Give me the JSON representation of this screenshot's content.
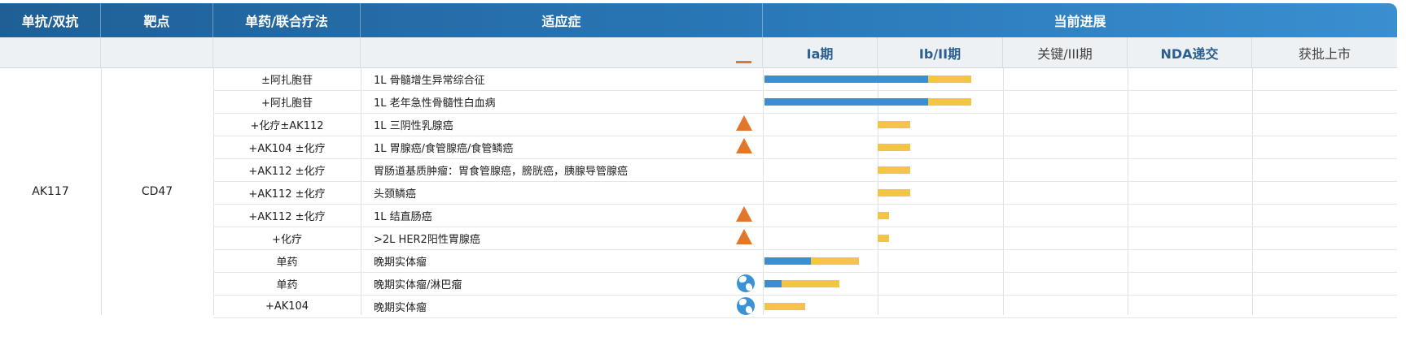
{
  "header": {
    "col_antibody": "单抗/双抗",
    "col_target": "靶点",
    "col_therapy": "单药/联合疗法",
    "col_indication": "适应症",
    "col_progress": "当前进展"
  },
  "phases": [
    "Ia期",
    "Ib/II期",
    "关键/III期",
    "NDA递交",
    "获批上市"
  ],
  "drug": "AK117",
  "target": "CD47",
  "colors": {
    "header_start": "#1f5f96",
    "header_end": "#3a8fd0",
    "bar_blue": "#3d8ed0",
    "bar_gold": "#f2c447",
    "marker": "#e0772a"
  },
  "rows": [
    {
      "therapy": "±阿扎胞苷",
      "indication": "1L 骨髓增生异常综合征",
      "marker": "",
      "progress_blue": 1.4,
      "progress_gold": 1.75
    },
    {
      "therapy": "+阿扎胞苷",
      "indication": "1L 老年急性骨髓性白血病",
      "marker": "",
      "progress_blue": 1.4,
      "progress_gold": 1.75
    },
    {
      "therapy": "+化疗±AK112",
      "indication": "1L 三阴性乳腺癌",
      "marker": "triangle-icon",
      "progress_blue": 0,
      "progress_gold": 1.26
    },
    {
      "therapy": "+AK104 ±化疗",
      "indication": "1L 胃腺癌/食管腺癌/食管鳞癌",
      "marker": "triangle-icon",
      "progress_blue": 0,
      "progress_gold": 1.26
    },
    {
      "therapy": "+AK112 ±化疗",
      "indication": "胃肠道基质肿瘤：胃食管腺癌，膀胱癌，胰腺导管腺癌",
      "marker": "",
      "progress_blue": 0,
      "progress_gold": 1.26
    },
    {
      "therapy": "+AK112 ±化疗",
      "indication": "头颈鳞癌",
      "marker": "",
      "progress_blue": 0,
      "progress_gold": 1.26
    },
    {
      "therapy": "+AK112 ±化疗",
      "indication": "1L 结直肠癌",
      "marker": "triangle-icon",
      "progress_blue": 0,
      "progress_gold": 1.09
    },
    {
      "therapy": "+化疗",
      "indication": ">2L HER2阳性胃腺癌",
      "marker": "triangle-icon",
      "progress_blue": 0,
      "progress_gold": 1.09
    },
    {
      "therapy": "单药",
      "indication": "晚期实体瘤",
      "marker": "",
      "progress_blue": 0.42,
      "progress_gold": 0.84
    },
    {
      "therapy": "单药",
      "indication": "晚期实体瘤/淋巴瘤",
      "marker": "globe-icon",
      "progress_blue": 0.16,
      "progress_gold": 0.67
    },
    {
      "therapy": "+AK104",
      "indication": "晚期实体瘤",
      "marker": "globe-icon",
      "progress_blue": 0,
      "progress_gold": 0.37
    }
  ]
}
